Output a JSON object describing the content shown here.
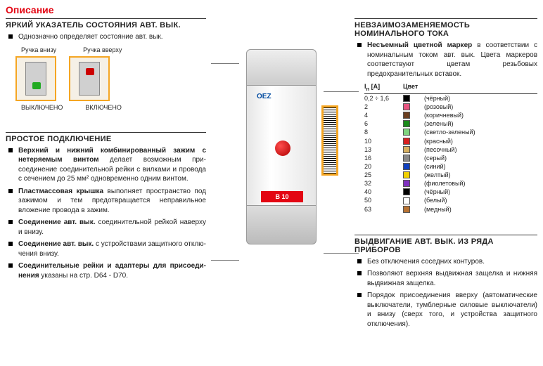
{
  "title": "Описание",
  "left": {
    "s1": {
      "hdr": "ЯРКИЙ УКАЗАТЕЛЬ СОСТОЯНИЯ АВТ. ВЫК.",
      "b1": "Однозначно определяет состояние авт. вык.",
      "lbl_down": "Ручка внизу",
      "lbl_up": "Ручка вверху",
      "cap_off": "ВЫКЛЮЧЕНО",
      "cap_on": "ВКЛЮЧЕНО"
    },
    "s2": {
      "hdr": "ПРОСТОЕ ПОДКЛЮЧЕНИЕ",
      "b1a": "Верхний и нижний комбинированный зажим с нетеряемым винтом",
      "b1b": " делает возможным при­соединение соединительной рейки с вилками и провода с сечением до 25 мм² одновременно одним винтом.",
      "b2a": "Пластмассовая крышка",
      "b2b": " выполняет пространство под зажимом и тем предотвращается неправильное вложение провода в зажим.",
      "b3a": "Соединение авт. вык.",
      "b3b": " соединительной рейкой наверху и внизу.",
      "b4a": "Соединение авт. вык.",
      "b4b": " с устройствами защитного отклю­чения внизу.",
      "b5a": "Соединительные рейки и адаптеры для присоеди­нения",
      "b5b": " указаны на стр. D64 - D70."
    }
  },
  "right": {
    "s1": {
      "hdr": "НЕВЗАИМОЗАМЕНЯЕМОСТЬ НОМИНАЛЬНОГО ТОКА",
      "b1a": "Несъемный цветной маркер",
      "b1b": " в соответствии с номинальным током авт. вык. Цвета маркеров соответствуют цветам резьбовых предохранительных вставок."
    },
    "tbl": {
      "h1": "I",
      "h1sub": "n",
      "h1unit": " [A]",
      "h2": "Цвет",
      "rows": [
        {
          "a": "0,2 ÷ 1,6",
          "c": "#000000",
          "n": "(чёрный)"
        },
        {
          "a": "2",
          "c": "#e75480",
          "n": "(розовый)"
        },
        {
          "a": "4",
          "c": "#6b3e1f",
          "n": "(коричневый)"
        },
        {
          "a": "6",
          "c": "#1a8a1a",
          "n": "(зеленый)"
        },
        {
          "a": "8",
          "c": "#7fd47f",
          "n": "(светло-зеленый)"
        },
        {
          "a": "10",
          "c": "#d82020",
          "n": "(красный)"
        },
        {
          "a": "13",
          "c": "#d8b060",
          "n": "(песочный)"
        },
        {
          "a": "16",
          "c": "#888888",
          "n": "(серый)"
        },
        {
          "a": "20",
          "c": "#1040c0",
          "n": "(синий)"
        },
        {
          "a": "25",
          "c": "#f0d000",
          "n": "(желтый)"
        },
        {
          "a": "32",
          "c": "#8030c0",
          "n": "(фиолетовый)"
        },
        {
          "a": "40",
          "c": "#000000",
          "n": "(чёрный)"
        },
        {
          "a": "50",
          "c": "#ffffff",
          "n": "(белый)"
        },
        {
          "a": "63",
          "c": "#b87333",
          "n": "(медный)"
        }
      ]
    },
    "s2": {
      "hdr": "ВЫДВИГАНИЕ АВТ. ВЫК. ИЗ РЯДА ПРИБОРОВ",
      "b1": "Без отключения соседних контуров.",
      "b2": "Позволяют верхняя выдвижная защелка и нижняя выдвижная защелка.",
      "b3": "Порядок присоединения вверху (автоматические выключатели, тумблерные силовые выключатели) и внизу (сверх того, и устройства защитного отключения)."
    }
  },
  "center": {
    "brand": "OEZ",
    "sub": "",
    "label": "B 10"
  }
}
